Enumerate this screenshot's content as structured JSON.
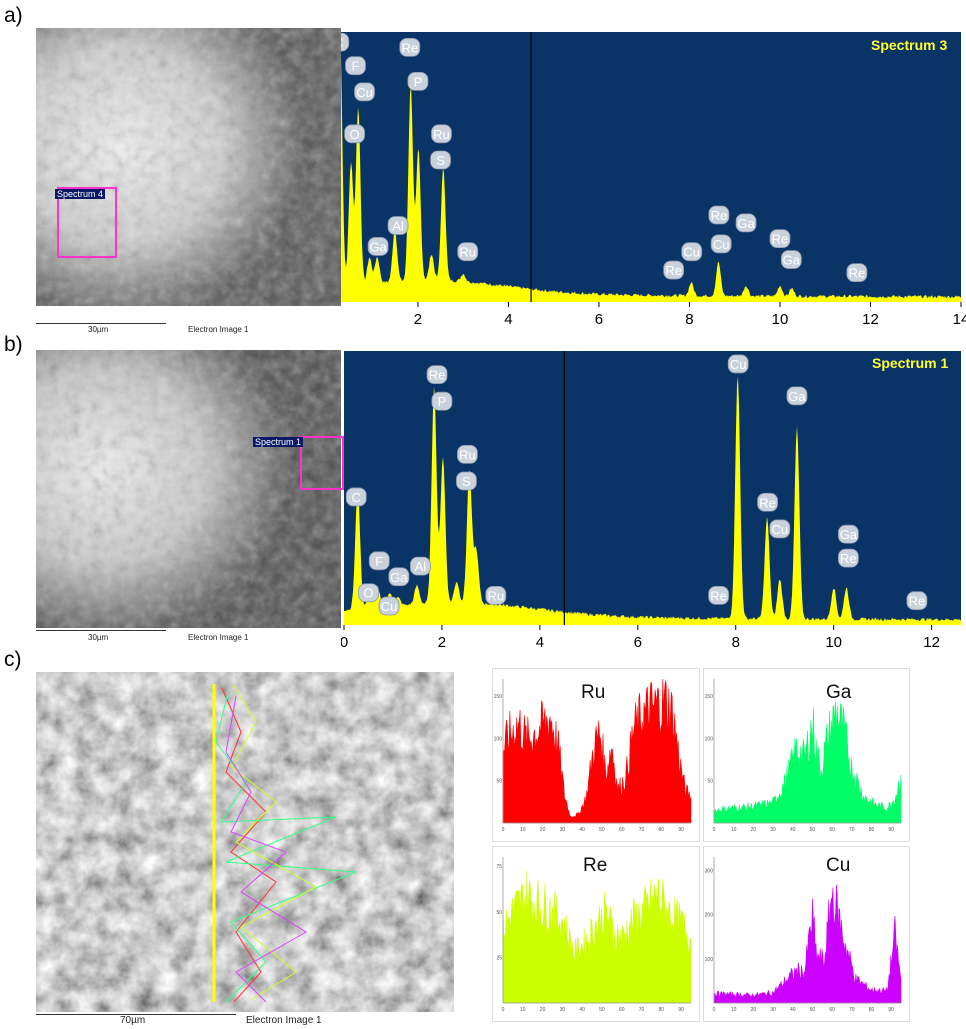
{
  "panels": {
    "a": {
      "label": "a)"
    },
    "b": {
      "label": "b)"
    },
    "c": {
      "label": "c)"
    }
  },
  "sem_a": {
    "scale_text": "30µm",
    "caption": "Electron Image 1",
    "roi_label": "Spectrum 4"
  },
  "sem_b": {
    "scale_text": "30µm",
    "caption": "Electron Image 1",
    "roi_label": "Spectrum 1"
  },
  "sem_c": {
    "scale_text": "70µm",
    "caption": "Electron Image 1"
  },
  "colors": {
    "eds_bg": "#0a3366",
    "eds_fill": "#ffff00",
    "ru": "#ff0000",
    "ga": "#00ff66",
    "re": "#ccff00",
    "cu": "#cc00ff"
  },
  "chart_data": [
    {
      "type": "area",
      "title": "Spectrum 3",
      "xlim": [
        0.3,
        14
      ],
      "x_ticks": [
        "2",
        "4",
        "6",
        "8",
        "10",
        "12",
        "14"
      ],
      "x_tick_values": [
        2,
        4,
        6,
        8,
        10,
        12,
        14
      ],
      "peaks": [
        {
          "x": 0.28,
          "h": 0.95
        },
        {
          "x": 0.52,
          "h": 0.47
        },
        {
          "x": 0.68,
          "h": 0.68
        },
        {
          "x": 0.93,
          "h": 0.1
        },
        {
          "x": 1.1,
          "h": 0.1
        },
        {
          "x": 1.49,
          "h": 0.2
        },
        {
          "x": 1.84,
          "h": 0.75
        },
        {
          "x": 2.01,
          "h": 0.5
        },
        {
          "x": 2.3,
          "h": 0.1
        },
        {
          "x": 2.56,
          "h": 0.43
        },
        {
          "x": 3.0,
          "h": 0.03
        },
        {
          "x": 8.04,
          "h": 0.05
        },
        {
          "x": 8.64,
          "h": 0.13
        },
        {
          "x": 9.25,
          "h": 0.04
        },
        {
          "x": 10.0,
          "h": 0.04
        },
        {
          "x": 10.26,
          "h": 0.03
        }
      ],
      "labels": [
        {
          "t": "C",
          "x": 0.25,
          "h": 0.95
        },
        {
          "t": "O",
          "x": 0.6,
          "h": 0.6
        },
        {
          "t": "F",
          "x": 0.62,
          "h": 0.86
        },
        {
          "t": "Cu",
          "x": 0.82,
          "h": 0.76
        },
        {
          "t": "Ga",
          "x": 1.12,
          "h": 0.17
        },
        {
          "t": "Al",
          "x": 1.56,
          "h": 0.25
        },
        {
          "t": "Re",
          "x": 1.82,
          "h": 0.93
        },
        {
          "t": "P",
          "x": 2.0,
          "h": 0.8
        },
        {
          "t": "Ru",
          "x": 2.52,
          "h": 0.6
        },
        {
          "t": "S",
          "x": 2.5,
          "h": 0.5
        },
        {
          "t": "Ru",
          "x": 3.1,
          "h": 0.15
        },
        {
          "t": "Re",
          "x": 7.65,
          "h": 0.08
        },
        {
          "t": "Cu",
          "x": 8.05,
          "h": 0.15
        },
        {
          "t": "Re",
          "x": 8.65,
          "h": 0.29
        },
        {
          "t": "Cu",
          "x": 8.7,
          "h": 0.18
        },
        {
          "t": "Ga",
          "x": 9.25,
          "h": 0.26
        },
        {
          "t": "Re",
          "x": 10.0,
          "h": 0.2
        },
        {
          "t": "Ga",
          "x": 10.25,
          "h": 0.12
        },
        {
          "t": "Re",
          "x": 11.7,
          "h": 0.07
        }
      ],
      "cursor_x": 4.5
    },
    {
      "type": "area",
      "title": "Spectrum 1",
      "xlim": [
        0,
        12.6
      ],
      "x_ticks": [
        "0",
        "2",
        "4",
        "6",
        "8",
        "10",
        "12"
      ],
      "x_tick_values": [
        0,
        2,
        4,
        6,
        8,
        10,
        12
      ],
      "peaks": [
        {
          "x": 0.28,
          "h": 0.45
        },
        {
          "x": 0.52,
          "h": 0.05
        },
        {
          "x": 0.68,
          "h": 0.08
        },
        {
          "x": 0.93,
          "h": 0.05
        },
        {
          "x": 1.1,
          "h": 0.03
        },
        {
          "x": 1.49,
          "h": 0.07
        },
        {
          "x": 1.84,
          "h": 0.82
        },
        {
          "x": 2.02,
          "h": 0.55
        },
        {
          "x": 2.3,
          "h": 0.08
        },
        {
          "x": 2.56,
          "h": 0.5
        },
        {
          "x": 2.7,
          "h": 0.2
        },
        {
          "x": 8.04,
          "h": 0.92
        },
        {
          "x": 8.64,
          "h": 0.38
        },
        {
          "x": 8.9,
          "h": 0.15
        },
        {
          "x": 9.25,
          "h": 0.72
        },
        {
          "x": 10.0,
          "h": 0.12
        },
        {
          "x": 10.26,
          "h": 0.12
        }
      ],
      "labels": [
        {
          "t": "C",
          "x": 0.25,
          "h": 0.44
        },
        {
          "t": "O",
          "x": 0.5,
          "h": 0.08
        },
        {
          "t": "F",
          "x": 0.72,
          "h": 0.2
        },
        {
          "t": "Cu",
          "x": 0.92,
          "h": 0.03
        },
        {
          "t": "Ga",
          "x": 1.12,
          "h": 0.14
        },
        {
          "t": "Al",
          "x": 1.56,
          "h": 0.18
        },
        {
          "t": "Re",
          "x": 1.9,
          "h": 0.9
        },
        {
          "t": "P",
          "x": 2.0,
          "h": 0.8
        },
        {
          "t": "Ru",
          "x": 2.52,
          "h": 0.6
        },
        {
          "t": "S",
          "x": 2.5,
          "h": 0.5
        },
        {
          "t": "Ru",
          "x": 3.1,
          "h": 0.07
        },
        {
          "t": "Re",
          "x": 7.65,
          "h": 0.07
        },
        {
          "t": "Cu",
          "x": 8.05,
          "h": 0.94
        },
        {
          "t": "Re",
          "x": 8.65,
          "h": 0.42
        },
        {
          "t": "Cu",
          "x": 8.9,
          "h": 0.32
        },
        {
          "t": "Ga",
          "x": 9.25,
          "h": 0.82
        },
        {
          "t": "Ga",
          "x": 10.3,
          "h": 0.3
        },
        {
          "t": "Re",
          "x": 10.3,
          "h": 0.21
        },
        {
          "t": "Re",
          "x": 11.7,
          "h": 0.05
        }
      ],
      "cursor_x": 4.5
    },
    {
      "type": "bar",
      "title": "Ru",
      "color": "#ff0000",
      "x_ticks": [
        "0",
        "10",
        "20",
        "30",
        "40",
        "50",
        "60",
        "70",
        "80",
        "90"
      ],
      "y_ticks": [
        "50",
        "100",
        "150"
      ],
      "ylim": [
        0,
        170
      ],
      "xlim": [
        0,
        95
      ],
      "profile": [
        [
          0,
          88
        ],
        [
          3,
          105
        ],
        [
          8,
          120
        ],
        [
          12,
          100
        ],
        [
          18,
          112
        ],
        [
          24,
          128
        ],
        [
          28,
          90
        ],
        [
          31,
          35
        ],
        [
          34,
          8
        ],
        [
          38,
          10
        ],
        [
          42,
          30
        ],
        [
          46,
          92
        ],
        [
          49,
          110
        ],
        [
          52,
          60
        ],
        [
          55,
          94
        ],
        [
          58,
          40
        ],
        [
          62,
          55
        ],
        [
          66,
          112
        ],
        [
          70,
          128
        ],
        [
          74,
          138
        ],
        [
          78,
          142
        ],
        [
          82,
          148
        ],
        [
          86,
          130
        ],
        [
          89,
          78
        ],
        [
          92,
          40
        ],
        [
          95,
          30
        ]
      ]
    },
    {
      "type": "bar",
      "title": "Ga",
      "color": "#00ff66",
      "x_ticks": [
        "0",
        "10",
        "20",
        "30",
        "40",
        "50",
        "60",
        "70",
        "80",
        "90"
      ],
      "y_ticks": [
        "50",
        "100",
        "150"
      ],
      "ylim": [
        0,
        170
      ],
      "xlim": [
        0,
        95
      ],
      "profile": [
        [
          0,
          15
        ],
        [
          10,
          18
        ],
        [
          20,
          20
        ],
        [
          30,
          24
        ],
        [
          36,
          48
        ],
        [
          42,
          90
        ],
        [
          46,
          78
        ],
        [
          50,
          120
        ],
        [
          54,
          62
        ],
        [
          58,
          104
        ],
        [
          62,
          135
        ],
        [
          66,
          110
        ],
        [
          70,
          66
        ],
        [
          76,
          32
        ],
        [
          82,
          22
        ],
        [
          88,
          18
        ],
        [
          92,
          30
        ],
        [
          95,
          58
        ]
      ]
    },
    {
      "type": "bar",
      "title": "Re",
      "color": "#ccff00",
      "x_ticks": [
        "0",
        "10",
        "20",
        "30",
        "40",
        "50",
        "60",
        "70",
        "80",
        "90"
      ],
      "y_ticks": [
        "25",
        "50",
        "75"
      ],
      "ylim": [
        0,
        80
      ],
      "xlim": [
        0,
        95
      ],
      "profile": [
        [
          0,
          42
        ],
        [
          6,
          52
        ],
        [
          12,
          60
        ],
        [
          18,
          55
        ],
        [
          24,
          52
        ],
        [
          30,
          46
        ],
        [
          36,
          28
        ],
        [
          42,
          34
        ],
        [
          46,
          42
        ],
        [
          52,
          50
        ],
        [
          56,
          40
        ],
        [
          60,
          36
        ],
        [
          66,
          46
        ],
        [
          72,
          52
        ],
        [
          78,
          60
        ],
        [
          84,
          50
        ],
        [
          90,
          44
        ],
        [
          95,
          36
        ]
      ]
    },
    {
      "type": "bar",
      "title": "Cu",
      "color": "#cc00ff",
      "x_ticks": [
        "0",
        "10",
        "20",
        "30",
        "40",
        "50",
        "60",
        "70",
        "80",
        "90"
      ],
      "y_ticks": [
        "100",
        "200",
        "300"
      ],
      "ylim": [
        0,
        330
      ],
      "xlim": [
        0,
        95
      ],
      "profile": [
        [
          0,
          22
        ],
        [
          10,
          20
        ],
        [
          20,
          18
        ],
        [
          30,
          24
        ],
        [
          36,
          50
        ],
        [
          42,
          75
        ],
        [
          46,
          70
        ],
        [
          50,
          200
        ],
        [
          52,
          110
        ],
        [
          56,
          95
        ],
        [
          60,
          255
        ],
        [
          63,
          205
        ],
        [
          67,
          130
        ],
        [
          72,
          55
        ],
        [
          80,
          30
        ],
        [
          88,
          28
        ],
        [
          92,
          160
        ],
        [
          95,
          50
        ]
      ]
    }
  ]
}
